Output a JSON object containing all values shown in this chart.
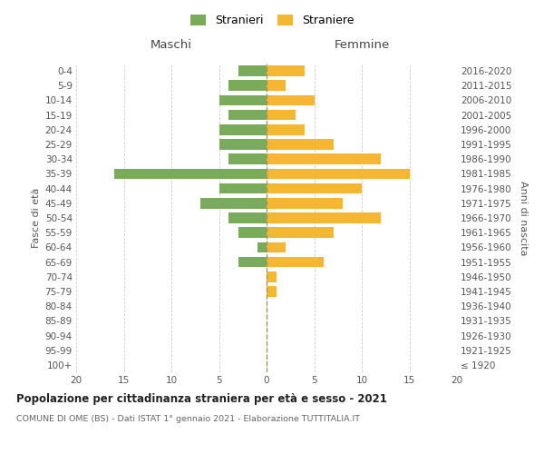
{
  "age_groups": [
    "100+",
    "95-99",
    "90-94",
    "85-89",
    "80-84",
    "75-79",
    "70-74",
    "65-69",
    "60-64",
    "55-59",
    "50-54",
    "45-49",
    "40-44",
    "35-39",
    "30-34",
    "25-29",
    "20-24",
    "15-19",
    "10-14",
    "5-9",
    "0-4"
  ],
  "birth_years": [
    "≤ 1920",
    "1921-1925",
    "1926-1930",
    "1931-1935",
    "1936-1940",
    "1941-1945",
    "1946-1950",
    "1951-1955",
    "1956-1960",
    "1961-1965",
    "1966-1970",
    "1971-1975",
    "1976-1980",
    "1981-1985",
    "1986-1990",
    "1991-1995",
    "1996-2000",
    "2001-2005",
    "2006-2010",
    "2011-2015",
    "2016-2020"
  ],
  "maschi": [
    0,
    0,
    0,
    0,
    0,
    0,
    0,
    3,
    1,
    3,
    4,
    7,
    5,
    16,
    4,
    5,
    5,
    4,
    5,
    4,
    3
  ],
  "femmine": [
    0,
    0,
    0,
    0,
    0,
    1,
    1,
    6,
    2,
    7,
    12,
    8,
    10,
    15,
    12,
    7,
    4,
    3,
    5,
    2,
    4
  ],
  "maschi_color": "#7aab5a",
  "femmine_color": "#f5b731",
  "title": "Popolazione per cittadinanza straniera per età e sesso - 2021",
  "subtitle": "COMUNE DI OME (BS) - Dati ISTAT 1° gennaio 2021 - Elaborazione TUTTITALIA.IT",
  "ylabel_left": "Fasce di età",
  "ylabel_right": "Anni di nascita",
  "xlabel_maschi": "Maschi",
  "xlabel_femmine": "Femmine",
  "legend_stranieri": "Stranieri",
  "legend_straniere": "Straniere",
  "xlim": 20,
  "background_color": "#ffffff",
  "grid_color": "#cccccc"
}
